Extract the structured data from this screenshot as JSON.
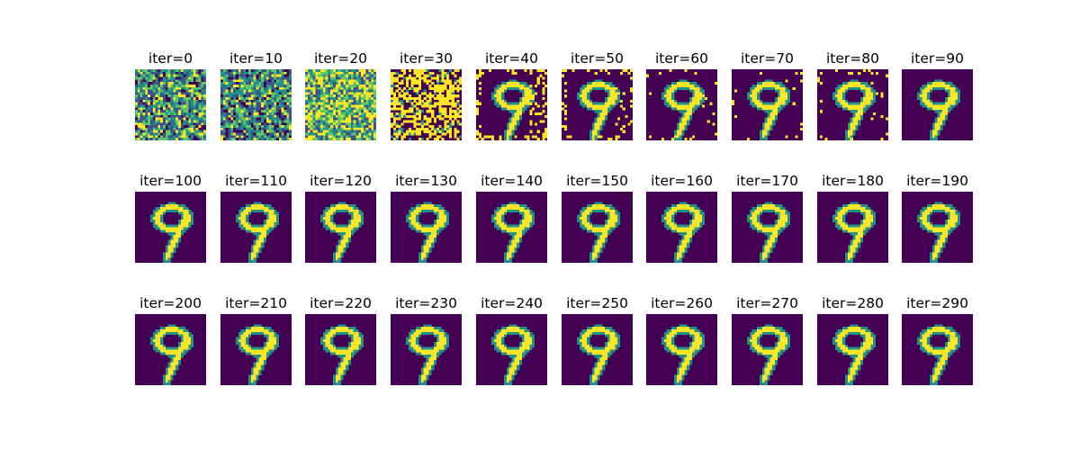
{
  "figure": {
    "title_prefix": "iter=",
    "iterations": [
      0,
      10,
      20,
      30,
      40,
      50,
      60,
      70,
      80,
      90,
      100,
      110,
      120,
      130,
      140,
      150,
      160,
      170,
      180,
      190,
      200,
      210,
      220,
      230,
      240,
      250,
      260,
      270,
      280,
      290
    ],
    "digit_depicted": "9",
    "colormap": [
      "#440154",
      "#3b528b",
      "#21918c",
      "#5ec962",
      "#fde725"
    ],
    "noise_levels": {
      "0": 1.0,
      "10": 1.0,
      "20": 1.0,
      "30": 0.85,
      "40": 0.08,
      "50": 0.05,
      "60": 0.03,
      "70": 0.02,
      "80": 0.02
    }
  }
}
